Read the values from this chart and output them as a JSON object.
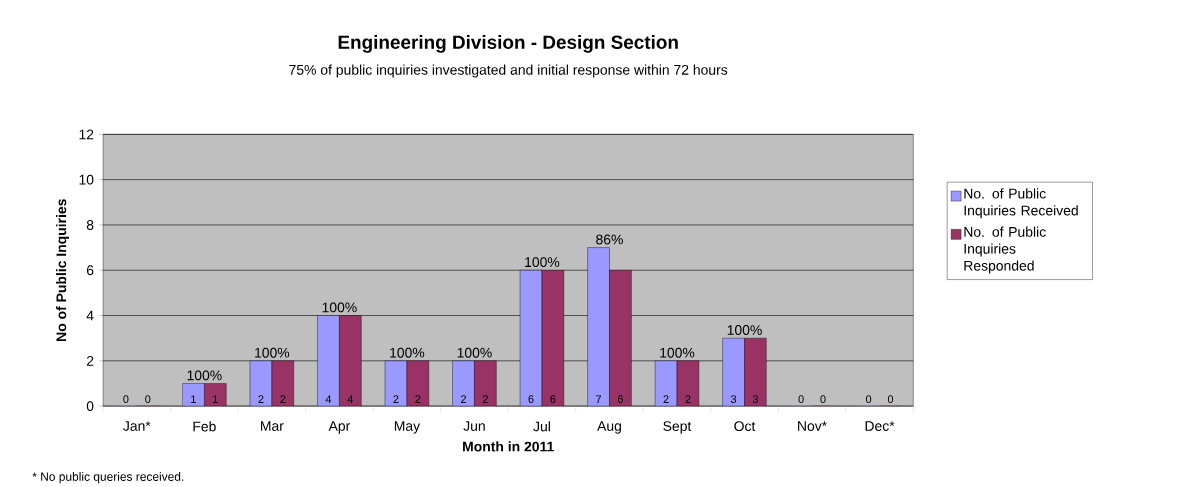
{
  "chart_data": {
    "type": "bar",
    "title": "Engineering Division - Design Section",
    "subtitle": "75% of public inquiries investigated and initial response within 72 hours",
    "xlabel": "Month in 2011",
    "ylabel": "No of Public Inquiries",
    "categories": [
      "Jan*",
      "Feb",
      "Mar",
      "Apr",
      "May",
      "Jun",
      "Jul",
      "Aug",
      "Sept",
      "Oct",
      "Nov*",
      "Dec*"
    ],
    "series": [
      {
        "name": "No. of Public Inquiries Received",
        "color": "#9999ff",
        "values": [
          0,
          1,
          2,
          4,
          2,
          2,
          6,
          7,
          2,
          3,
          0,
          0
        ]
      },
      {
        "name": "No. of Public Inquiries Responded",
        "color": "#993366",
        "values": [
          0,
          1,
          2,
          4,
          2,
          2,
          6,
          6,
          2,
          3,
          0,
          0
        ]
      }
    ],
    "ylim": [
      0,
      12
    ],
    "yticks": [
      0,
      2,
      4,
      6,
      8,
      10,
      12
    ],
    "grid": "y",
    "legend": "right",
    "data_labels": true,
    "annotations": [
      {
        "text": "100%",
        "x": "Feb",
        "y": 1
      },
      {
        "text": "100%",
        "x": "Mar",
        "y": 2
      },
      {
        "text": "100%",
        "x": "Apr",
        "y": 4
      },
      {
        "text": "100%",
        "x": "May",
        "y": 2
      },
      {
        "text": "100%",
        "x": "Jun",
        "y": 2
      },
      {
        "text": "100%",
        "x": "Jul",
        "y": 6
      },
      {
        "text": "86%",
        "x": "Aug",
        "y": 7
      },
      {
        "text": "100%",
        "x": "Sept",
        "y": 2
      },
      {
        "text": "100%",
        "x": "Oct",
        "y": 3
      },
      "* No public queries received."
    ]
  }
}
